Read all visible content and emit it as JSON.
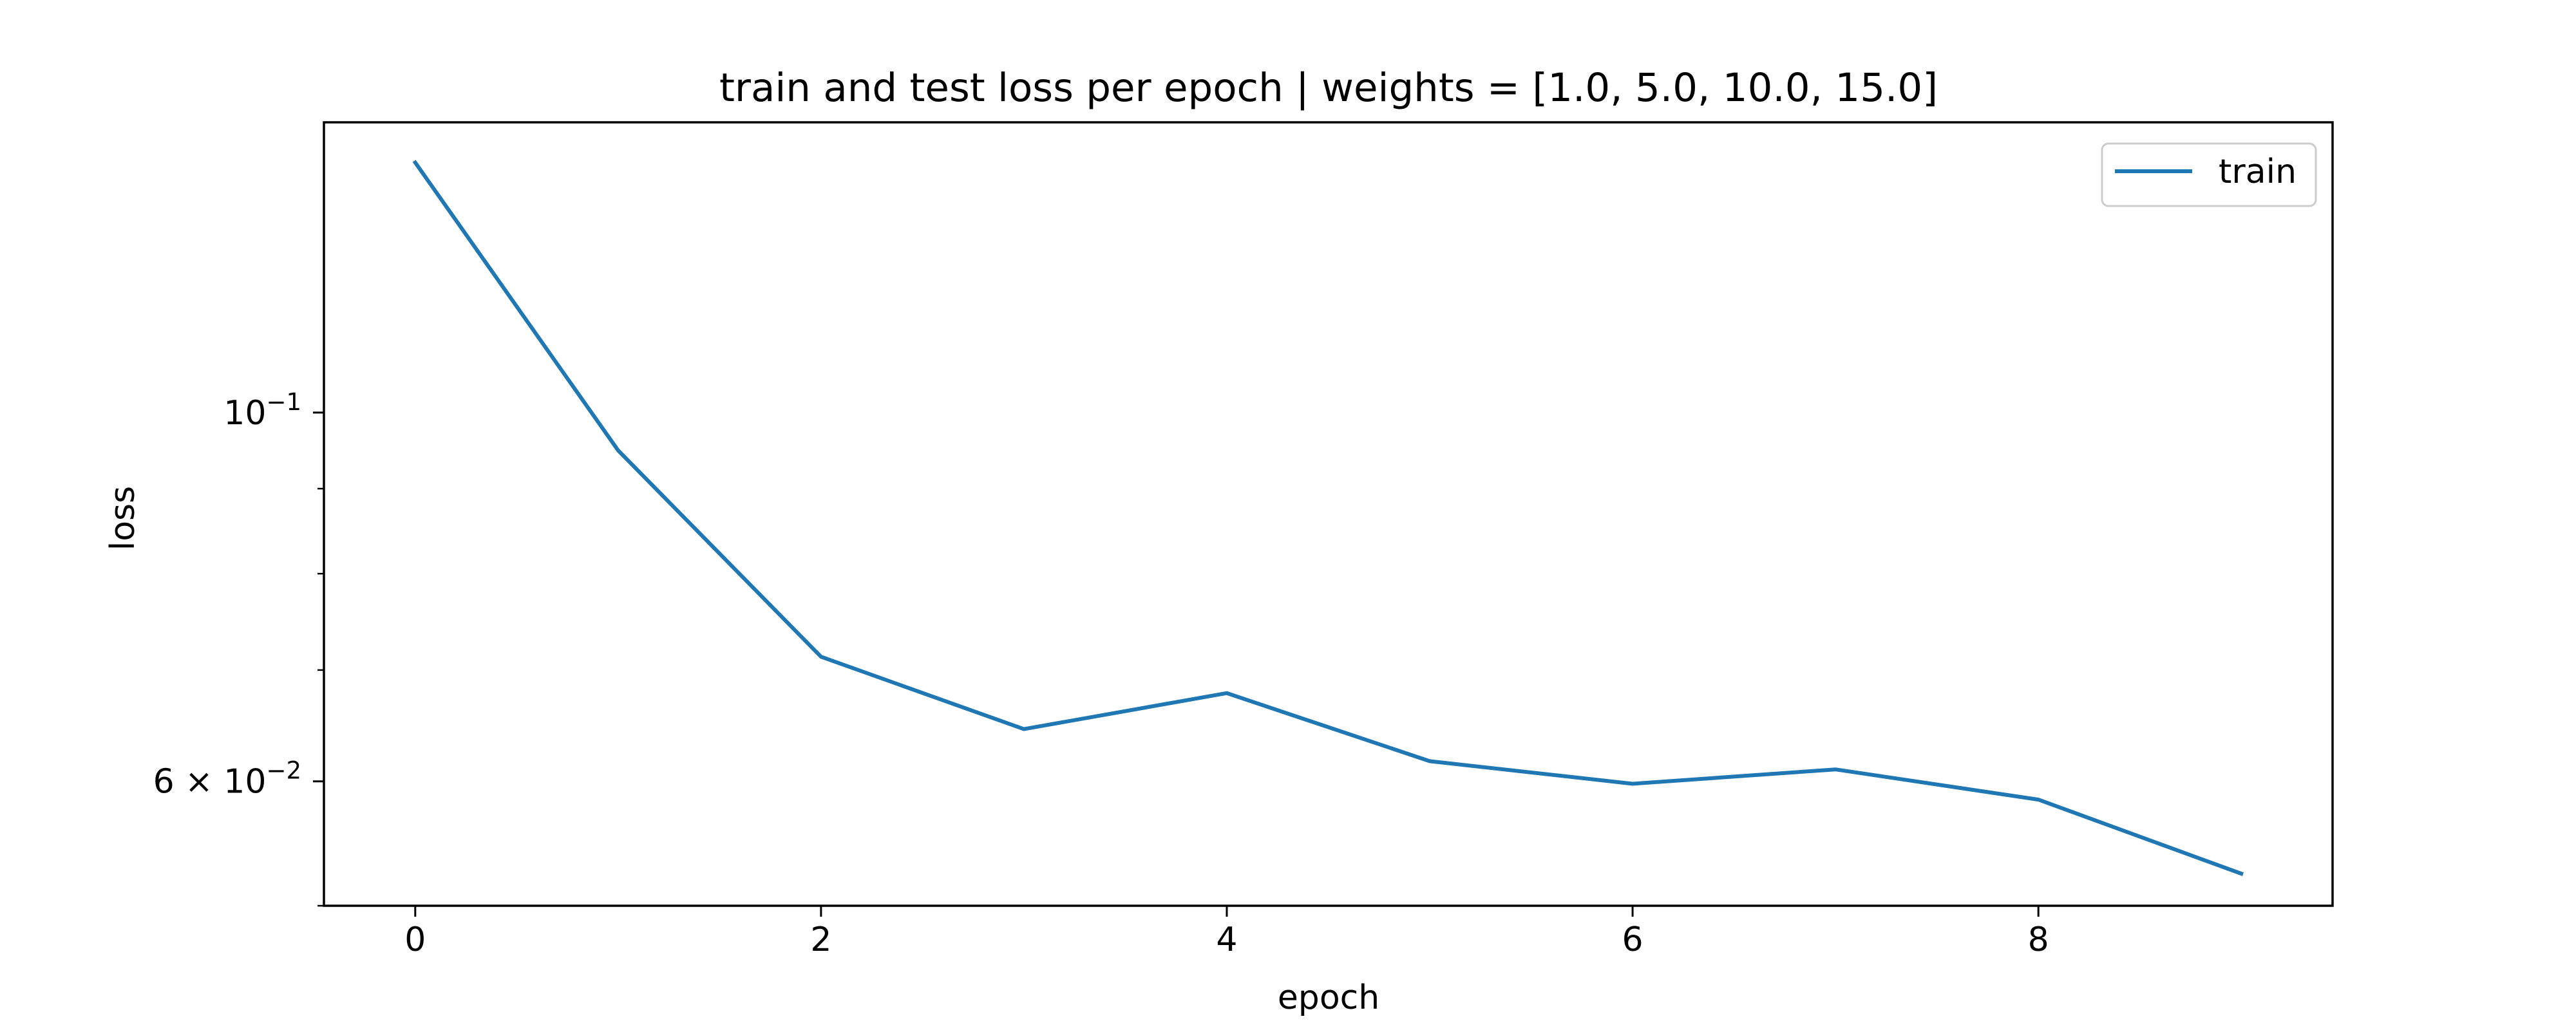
{
  "chart_data": {
    "type": "line",
    "title": "train and test loss per epoch | weights = [1.0, 5.0, 10.0, 15.0]",
    "xlabel": "epoch",
    "ylabel": "loss",
    "yscale": "log",
    "xlim": [
      -0.45,
      9.45
    ],
    "ylim": [
      0.0505,
      0.1495
    ],
    "grid": false,
    "legend_position": "upper-right",
    "x_ticks": [
      0,
      2,
      4,
      6,
      8
    ],
    "x_tick_labels": [
      "0",
      "2",
      "4",
      "6",
      "8"
    ],
    "y_major_ticks": [
      {
        "value": 0.1,
        "base": "10",
        "exp": "−1",
        "mantissa": ""
      },
      {
        "value": 0.06,
        "base": "10",
        "exp": "−2",
        "mantissa": "6 × "
      }
    ],
    "y_minor_ticks": [
      0.07,
      0.08,
      0.09
    ],
    "series": [
      {
        "name": "train",
        "color": "#1f77b4",
        "x": [
          0,
          1,
          2,
          3,
          4,
          5,
          6,
          7,
          8,
          9
        ],
        "values": [
          0.1414,
          0.0949,
          0.0713,
          0.0645,
          0.0678,
          0.0617,
          0.0598,
          0.061,
          0.0585,
          0.0528
        ]
      }
    ]
  }
}
